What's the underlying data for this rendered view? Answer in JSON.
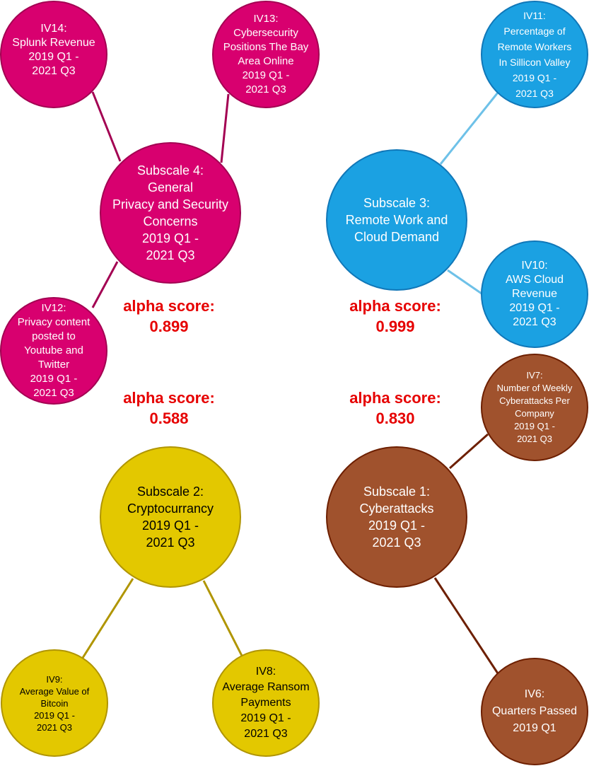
{
  "colors": {
    "subscale_4": "#d8006f",
    "subscale_3": "#1ba1e2",
    "subscale_2": "#e3c800",
    "subscale_1": "#a0522d",
    "alpha_text": "#e60000"
  },
  "subscales": {
    "s4": "Subscale 4:\nGeneral\nPrivacy and Security\nConcerns\n2019 Q1 -\n2021 Q3",
    "s3": "Subscale 3:\nRemote Work and\nCloud Demand",
    "s2": "Subscale 2:\nCryptocurrancy\n2019 Q1 -\n2021 Q3",
    "s1": "Subscale 1:\nCyberattacks\n2019 Q1 -\n2021 Q3"
  },
  "variables": {
    "iv14": "IV14:\nSplunk Revenue\n2019 Q1 -\n2021 Q3",
    "iv13": "IV13:\nCybersecurity\nPositions The Bay\nArea Online\n2019 Q1 -\n2021 Q3",
    "iv12": "IV12:\nPrivacy content\nposted to\nYoutube and\nTwitter\n2019 Q1 -\n2021 Q3",
    "iv11": "IV11:\nPercentage of\nRemote Workers\nIn Sillicon Valley\n2019 Q1 -\n2021 Q3",
    "iv10": "IV10:\nAWS Cloud\nRevenue\n2019 Q1 -\n2021 Q3",
    "iv7": "IV7:\nNumber of Weekly\nCyberattacks Per\nCompany\n2019 Q1 -\n2021 Q3",
    "iv9": "IV9:\nAverage Value of\nBitcoin\n2019 Q1 -\n2021 Q3",
    "iv8": "IV8:\nAverage Ransom\nPayments\n2019 Q1 -\n2021 Q3",
    "iv6": "IV6:\nQuarters Passed\n2019 Q1"
  },
  "alpha_scores": {
    "s4": "alpha score:\n0.899",
    "s3": "alpha score:\n0.999",
    "s2": "alpha score:\n0.588",
    "s1": "alpha score:\n0.830"
  }
}
